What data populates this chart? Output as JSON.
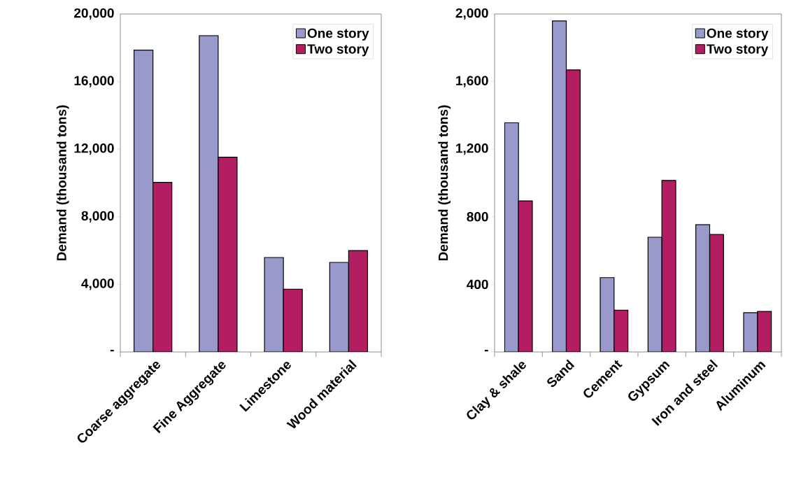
{
  "chart_data": [
    {
      "type": "bar",
      "ylabel": "Demand (thousand tons)",
      "categories": [
        "Coarse aggregate",
        "Fine Aggregate",
        "Limestone",
        "Wood material"
      ],
      "series": [
        {
          "name": "One story",
          "color": "#9999cc",
          "values": [
            17860,
            18720,
            5590,
            5300
          ]
        },
        {
          "name": "Two story",
          "color": "#b31e63",
          "values": [
            10040,
            11530,
            3710,
            6000
          ]
        }
      ],
      "ylim": [
        0,
        20000
      ],
      "yticks": [
        {
          "value": 0,
          "label": "-"
        },
        {
          "value": 4000,
          "label": "4,000"
        },
        {
          "value": 8000,
          "label": "8,000"
        },
        {
          "value": 12000,
          "label": "12,000"
        },
        {
          "value": 16000,
          "label": "16,000"
        },
        {
          "value": 20000,
          "label": "20,000"
        }
      ],
      "legend": "top right",
      "grid": false
    },
    {
      "type": "bar",
      "ylabel": "Demand (thousand tons)",
      "categories": [
        "Clay & shale",
        "Sand",
        "Cement",
        "Gypsum",
        "Iron and steel",
        "Aluminum"
      ],
      "series": [
        {
          "name": "One story",
          "color": "#9999cc",
          "values": [
            1356,
            1959,
            440,
            679,
            753,
            232
          ]
        },
        {
          "name": "Two story",
          "color": "#b31e63",
          "values": [
            894,
            1669,
            247,
            1015,
            695,
            240
          ]
        }
      ],
      "ylim": [
        0,
        2000
      ],
      "yticks": [
        {
          "value": 0,
          "label": "-"
        },
        {
          "value": 400,
          "label": "400"
        },
        {
          "value": 800,
          "label": "800"
        },
        {
          "value": 1200,
          "label": "1,200"
        },
        {
          "value": 1600,
          "label": "1,600"
        },
        {
          "value": 2000,
          "label": "2,000"
        }
      ],
      "legend": "top right",
      "grid": false
    }
  ]
}
